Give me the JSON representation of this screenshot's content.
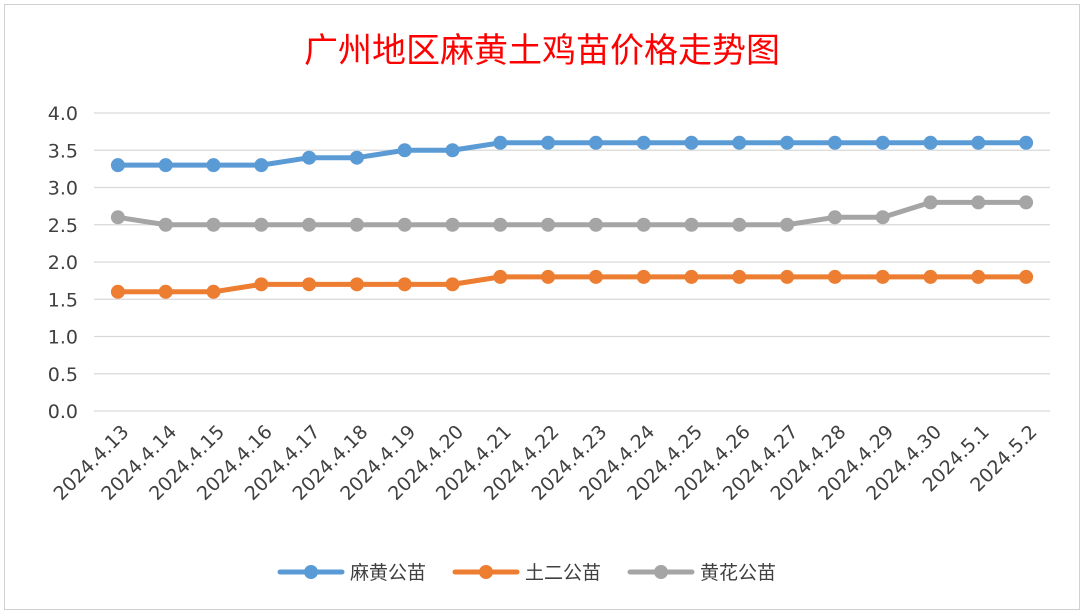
{
  "chart_data": {
    "type": "line",
    "title": "广州地区麻黄土鸡苗价格走势图",
    "xlabel": "",
    "ylabel": "",
    "ylim": [
      0,
      4.0
    ],
    "yticks": [
      "0.0",
      "0.5",
      "1.0",
      "1.5",
      "2.0",
      "2.5",
      "3.0",
      "3.5",
      "4.0"
    ],
    "grid": true,
    "legend_position": "bottom",
    "categories": [
      "2024.4.13",
      "2024.4.14",
      "2024.4.15",
      "2024.4.16",
      "2024.4.17",
      "2024.4.18",
      "2024.4.19",
      "2024.4.20",
      "2024.4.21",
      "2024.4.22",
      "2024.4.23",
      "2024.4.24",
      "2024.4.25",
      "2024.4.26",
      "2024.4.27",
      "2024.4.28",
      "2024.4.29",
      "2024.4.30",
      "2024.5.1",
      "2024.5.2"
    ],
    "series": [
      {
        "name": "麻黄公苗",
        "color": "#5b9bd5",
        "values": [
          3.3,
          3.3,
          3.3,
          3.3,
          3.4,
          3.4,
          3.5,
          3.5,
          3.6,
          3.6,
          3.6,
          3.6,
          3.6,
          3.6,
          3.6,
          3.6,
          3.6,
          3.6,
          3.6,
          3.6
        ]
      },
      {
        "name": "土二公苗",
        "color": "#ed7d31",
        "values": [
          1.6,
          1.6,
          1.6,
          1.7,
          1.7,
          1.7,
          1.7,
          1.7,
          1.8,
          1.8,
          1.8,
          1.8,
          1.8,
          1.8,
          1.8,
          1.8,
          1.8,
          1.8,
          1.8,
          1.8
        ]
      },
      {
        "name": "黄花公苗",
        "color": "#a5a5a5",
        "values": [
          2.6,
          2.5,
          2.5,
          2.5,
          2.5,
          2.5,
          2.5,
          2.5,
          2.5,
          2.5,
          2.5,
          2.5,
          2.5,
          2.5,
          2.5,
          2.6,
          2.6,
          2.8,
          2.8,
          2.8
        ]
      }
    ]
  }
}
